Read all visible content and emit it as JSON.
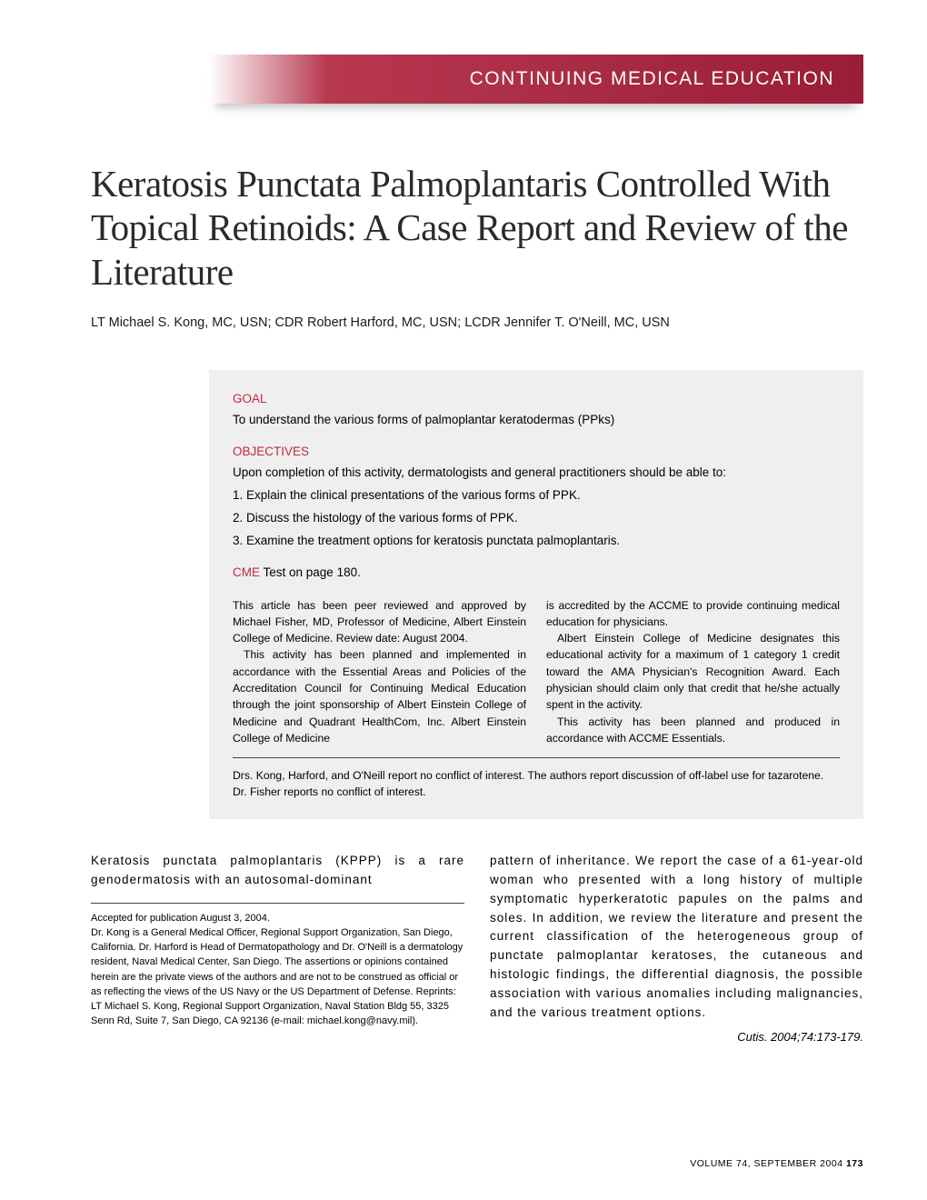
{
  "header": {
    "category": "CONTINUING MEDICAL EDUCATION",
    "gradient_start": "#ffffff",
    "gradient_end": "#9a1c36"
  },
  "article": {
    "title": "Keratosis Punctata Palmoplantaris Controlled With Topical Retinoids: A Case Report and Review of the Literature",
    "authors": "LT Michael S. Kong, MC, USN; CDR Robert Harford, MC, USN; LCDR Jennifer T. O'Neill, MC, USN"
  },
  "infobox": {
    "goal_label": "GOAL",
    "goal_text": "To understand the various forms of palmoplantar keratodermas (PPks)",
    "objectives_label": "OBJECTIVES",
    "objectives_intro": "Upon completion of this activity, dermatologists and general practitioners should be able to:",
    "objectives": [
      "1. Explain the clinical presentations of the various forms of PPK.",
      "2. Discuss the histology of the various forms of PPK.",
      "3. Examine the treatment options for keratosis punctata palmoplantaris."
    ],
    "cme_red": "CME",
    "cme_rest": " Test on page 180.",
    "accreditation_col1_p1": "This article has been peer reviewed and approved by Michael Fisher, MD, Professor of Medicine, Albert Einstein College of Medicine. Review date: August 2004.",
    "accreditation_col1_p2": "This activity has been planned and implemented in accordance with the Essential Areas and Policies of the Accreditation Council for Continuing Medical Education through the joint sponsorship of Albert Einstein College of Medicine and Quadrant HealthCom, Inc. Albert Einstein College of Medicine",
    "accreditation_col2_p1": "is accredited by the ACCME to provide continuing medical education for physicians.",
    "accreditation_col2_p2": "Albert Einstein College of Medicine designates this educational activity for a maximum of 1 category 1 credit toward the AMA Physician's Recognition Award. Each physician should claim only that credit that he/she actually spent in the activity.",
    "accreditation_col2_p3": "This activity has been planned and produced in accordance with ACCME Essentials.",
    "disclosure": "Drs. Kong, Harford, and O'Neill report no conflict of interest. The authors report discussion of off-label use for tazarotene. Dr. Fisher reports no conflict of interest."
  },
  "body": {
    "abstract_left": "Keratosis punctata palmoplantaris (KPPP) is a rare genodermatosis with an autosomal-dominant",
    "abstract_right": "pattern of inheritance. We report the case of a 61-year-old woman who presented with a long history of multiple symptomatic hyperkeratotic papules on the palms and soles. In addition, we review the literature and present the current classification of the heterogeneous group of punctate palmoplantar keratoses, the cutaneous and histologic findings, the differential diagnosis, the possible association with various anomalies including malignancies, and the various treatment options.",
    "citation": "Cutis. 2004;74:173-179."
  },
  "footnote": {
    "accepted": "Accepted for publication August 3, 2004.",
    "text": "Dr. Kong is a General Medical Officer, Regional Support Organization, San Diego, California. Dr. Harford is Head of Dermatopathology and Dr. O'Neill is a dermatology resident, Naval Medical Center, San Diego. The assertions or opinions contained herein are the private views of the authors and are not to be construed as official or as reflecting the views of the US Navy or the US Department of Defense. Reprints: LT Michael S. Kong, Regional Support Organization, Naval Station Bldg 55, 3325 Senn Rd, Suite 7, San Diego, CA 92136 (e-mail: michael.kong@navy.mil)."
  },
  "footer": {
    "volume": "VOLUME 74, SEPTEMBER 2004",
    "page": "173"
  },
  "colors": {
    "accent": "#c22742",
    "infobox_bg": "#efefef",
    "text": "#000000"
  }
}
